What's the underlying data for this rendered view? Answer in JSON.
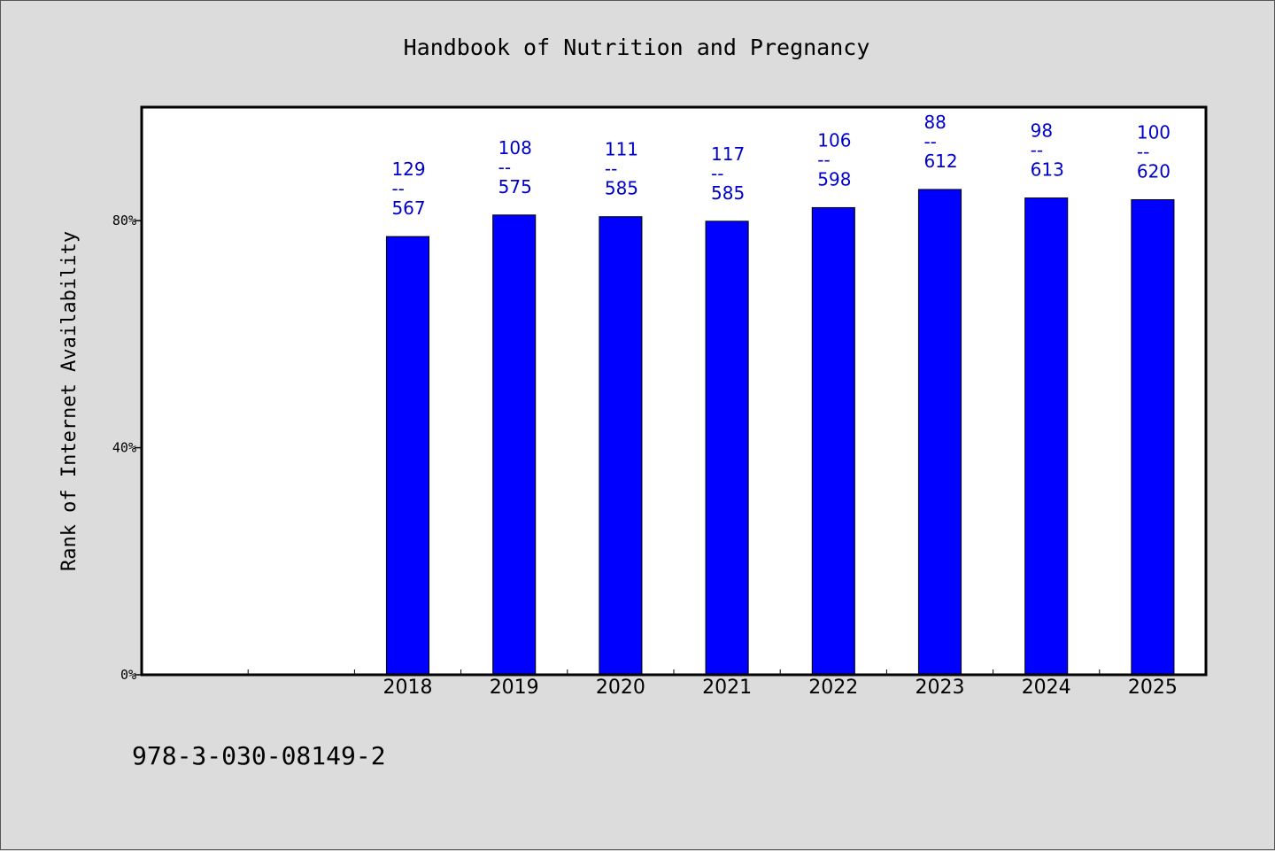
{
  "chart_data": {
    "type": "bar",
    "title": "Handbook of Nutrition and Pregnancy",
    "xlabel": "",
    "ylabel": "Rank of Internet Availability",
    "categories": [
      "2018",
      "2019",
      "2020",
      "2021",
      "2022",
      "2023",
      "2024",
      "2025"
    ],
    "values": [
      77.2,
      81.0,
      80.7,
      79.9,
      82.3,
      85.5,
      84.0,
      83.7
    ],
    "bar_labels": [
      [
        "129",
        "--",
        "567"
      ],
      [
        "108",
        "--",
        "575"
      ],
      [
        "111",
        "--",
        "585"
      ],
      [
        "117",
        "--",
        "585"
      ],
      [
        "106",
        "--",
        "598"
      ],
      [
        "88",
        "--",
        "612"
      ],
      [
        "98",
        "--",
        "613"
      ],
      [
        "100",
        "--",
        "620"
      ]
    ],
    "yticks": [
      0,
      40,
      80
    ],
    "ytick_labels": [
      "0%",
      "40%",
      "80%"
    ],
    "ylim": [
      0,
      100
    ],
    "x_slots": 10,
    "grid": false,
    "bar_color": "#0000ff",
    "label_color": "#0000cc"
  },
  "footnote": "978-3-030-08149-2"
}
